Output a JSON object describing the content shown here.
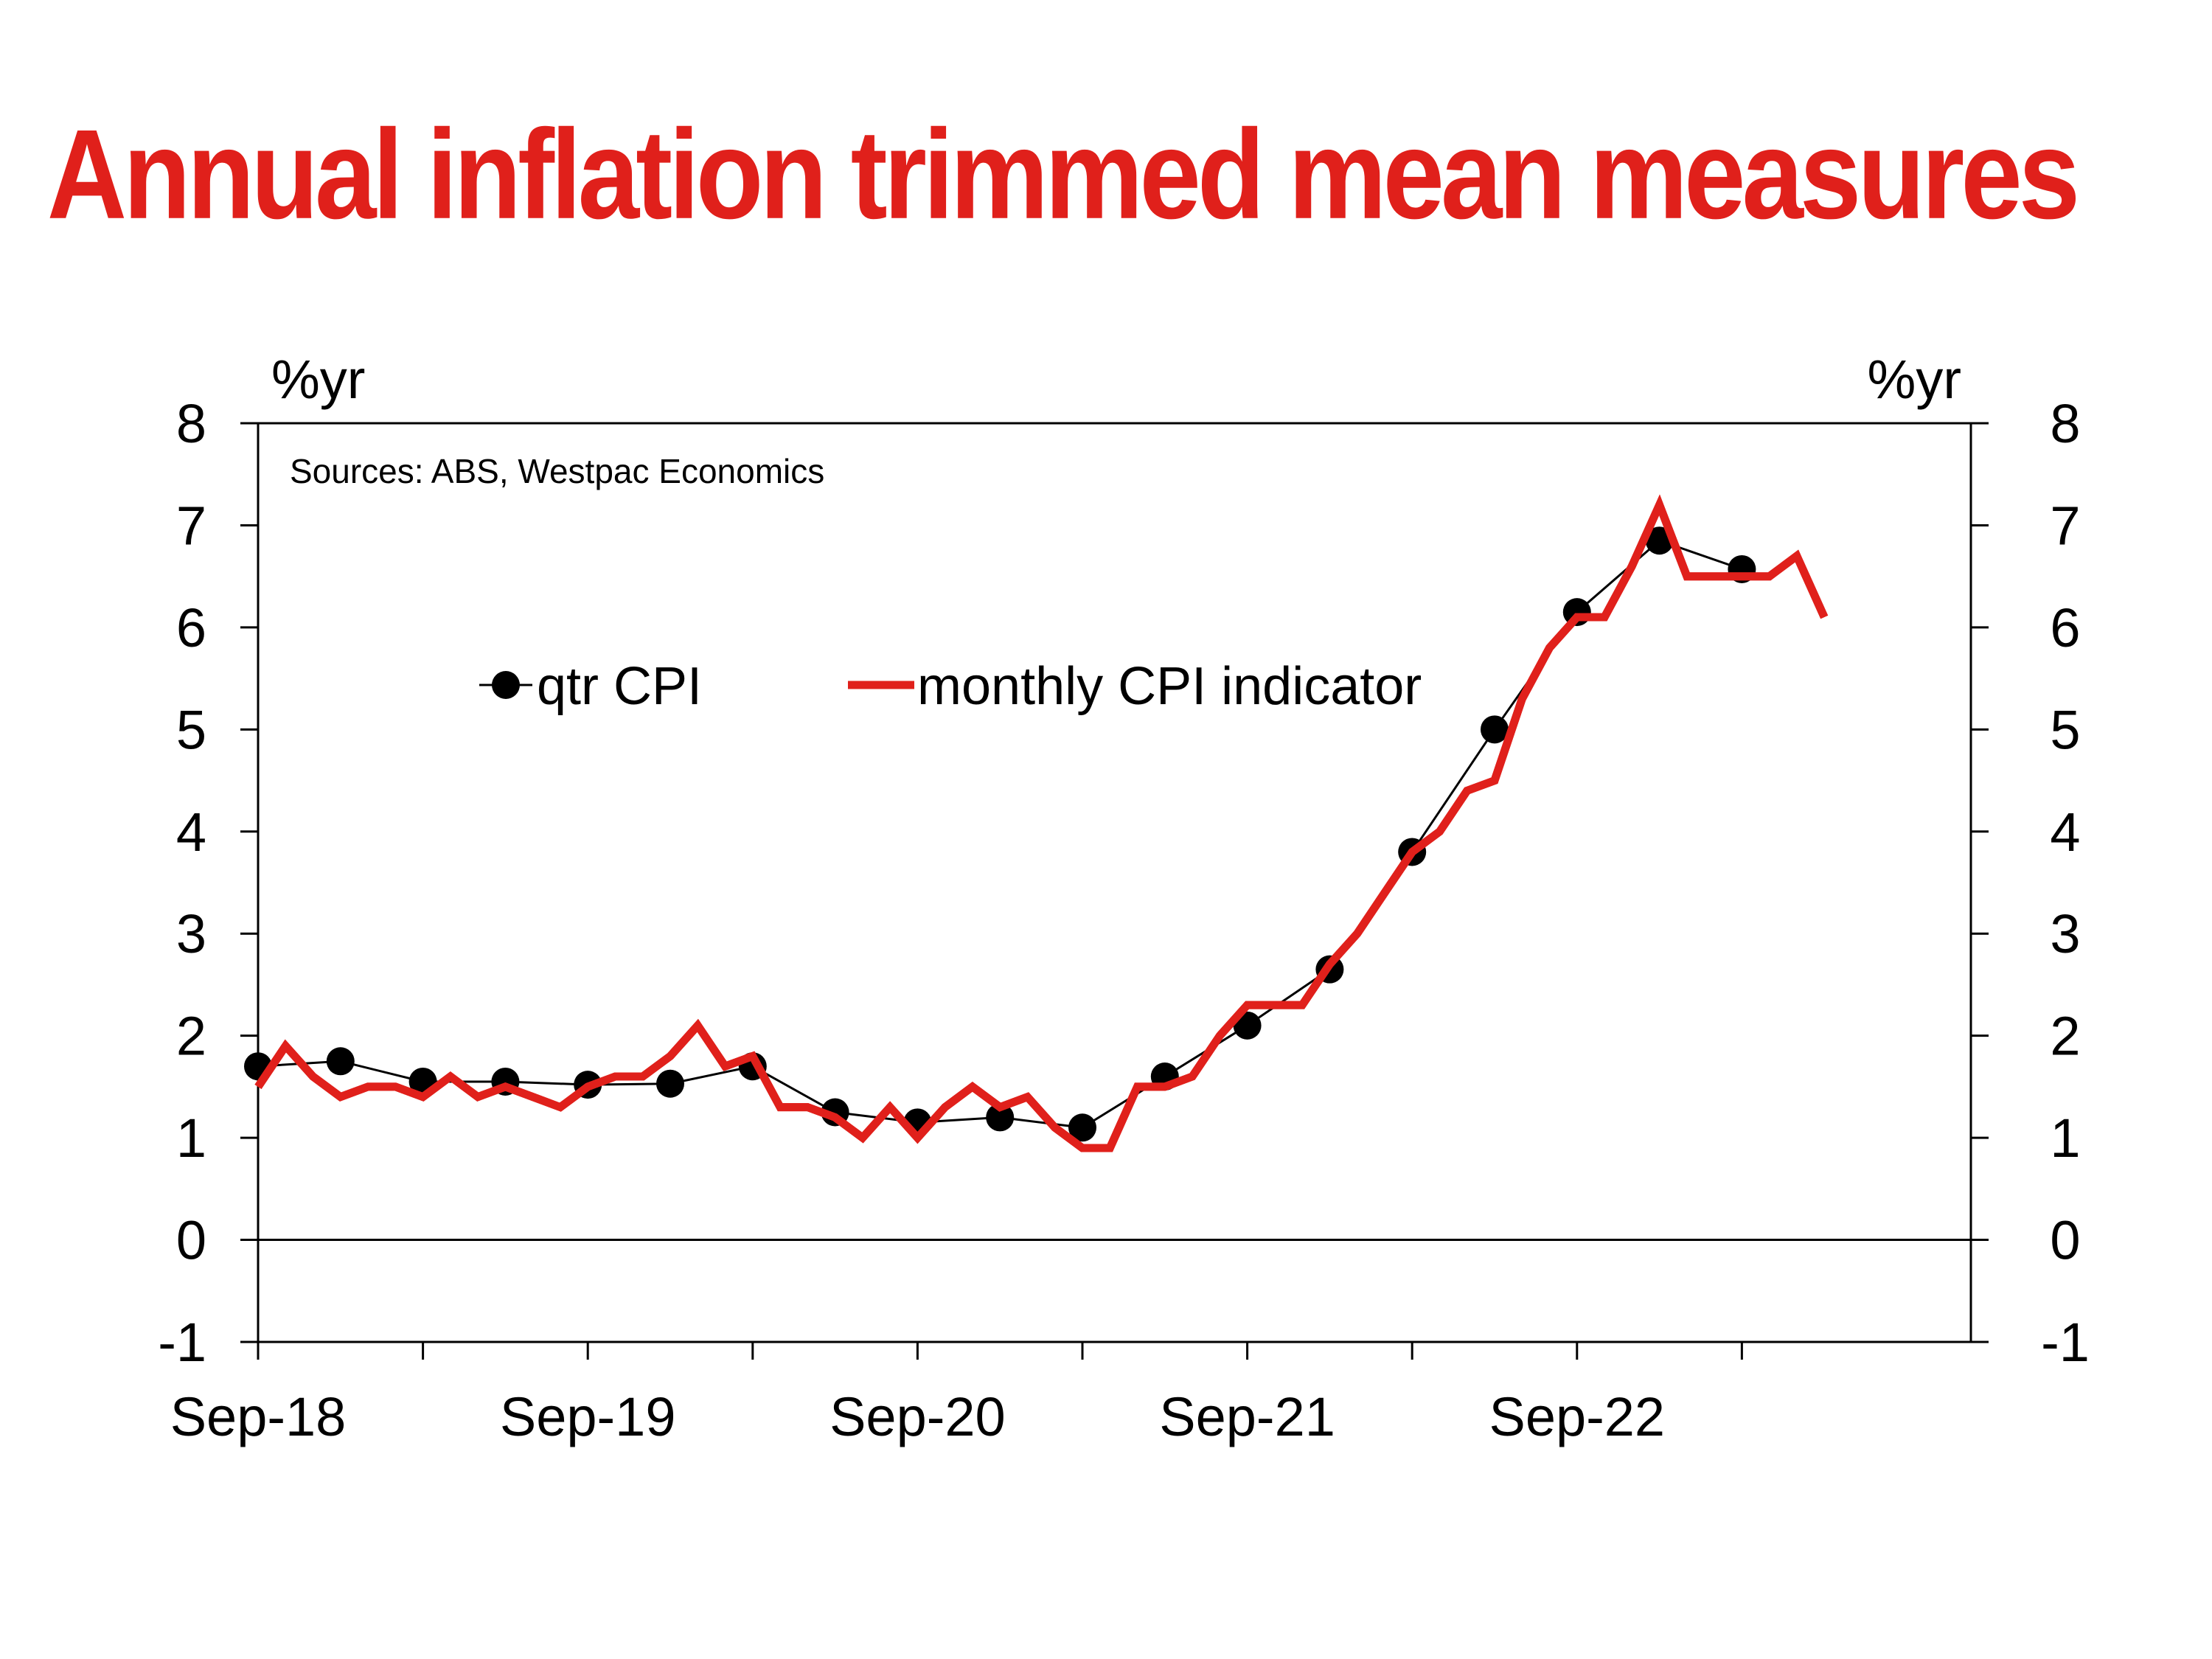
{
  "title": "Annual inflation trimmed mean measures",
  "chart_data": {
    "type": "line",
    "title": "Annual inflation trimmed mean measures",
    "source_note": "Sources: ABS, Westpac Economics",
    "y_unit_left": "%yr",
    "y_unit_right": "%yr",
    "ylim": [
      -1,
      8
    ],
    "yticks": [
      -1,
      0,
      1,
      2,
      3,
      4,
      5,
      6,
      7,
      8
    ],
    "x_tick_labels": [
      "Sep-18",
      "Sep-19",
      "Sep-20",
      "Sep-21",
      "Sep-22"
    ],
    "x_label_positions": [
      "2018-09",
      "2019-09",
      "2020-09",
      "2021-09",
      "2022-09"
    ],
    "x_range": [
      "2018-09",
      "2023-08"
    ],
    "grid": false,
    "legend_position": "top-left inside plot",
    "colors": {
      "qtr": "#000000",
      "monthly": "#e0201b"
    },
    "series": [
      {
        "name": "qtr CPI",
        "style": "line-with-markers",
        "points": [
          [
            "2018-09",
            1.7
          ],
          [
            "2018-12",
            1.75
          ],
          [
            "2019-03",
            1.55
          ],
          [
            "2019-06",
            1.55
          ],
          [
            "2019-09",
            1.52
          ],
          [
            "2019-12",
            1.53
          ],
          [
            "2020-03",
            1.7
          ],
          [
            "2020-06",
            1.25
          ],
          [
            "2020-09",
            1.15
          ],
          [
            "2020-12",
            1.2
          ],
          [
            "2021-03",
            1.1
          ],
          [
            "2021-06",
            1.6
          ],
          [
            "2021-09",
            2.1
          ],
          [
            "2021-12",
            2.65
          ],
          [
            "2022-03",
            3.8
          ],
          [
            "2022-06",
            5.0
          ],
          [
            "2022-09",
            6.15
          ],
          [
            "2022-12",
            6.85
          ],
          [
            "2023-03",
            6.57
          ]
        ]
      },
      {
        "name": "monthly CPI indicator",
        "style": "line",
        "points": [
          [
            "2018-09",
            1.5
          ],
          [
            "2018-10",
            1.9
          ],
          [
            "2018-11",
            1.6
          ],
          [
            "2018-12",
            1.4
          ],
          [
            "2019-01",
            1.5
          ],
          [
            "2019-02",
            1.5
          ],
          [
            "2019-03",
            1.4
          ],
          [
            "2019-04",
            1.6
          ],
          [
            "2019-05",
            1.4
          ],
          [
            "2019-06",
            1.5
          ],
          [
            "2019-07",
            1.4
          ],
          [
            "2019-08",
            1.3
          ],
          [
            "2019-09",
            1.5
          ],
          [
            "2019-10",
            1.6
          ],
          [
            "2019-11",
            1.6
          ],
          [
            "2019-12",
            1.8
          ],
          [
            "2020-01",
            2.1
          ],
          [
            "2020-02",
            1.7
          ],
          [
            "2020-03",
            1.8
          ],
          [
            "2020-04",
            1.3
          ],
          [
            "2020-05",
            1.3
          ],
          [
            "2020-06",
            1.2
          ],
          [
            "2020-07",
            1.0
          ],
          [
            "2020-08",
            1.3
          ],
          [
            "2020-09",
            1.0
          ],
          [
            "2020-10",
            1.3
          ],
          [
            "2020-11",
            1.5
          ],
          [
            "2020-12",
            1.3
          ],
          [
            "2021-01",
            1.4
          ],
          [
            "2021-02",
            1.1
          ],
          [
            "2021-03",
            0.9
          ],
          [
            "2021-04",
            0.9
          ],
          [
            "2021-05",
            1.5
          ],
          [
            "2021-06",
            1.5
          ],
          [
            "2021-07",
            1.6
          ],
          [
            "2021-08",
            2.0
          ],
          [
            "2021-09",
            2.3
          ],
          [
            "2021-10",
            2.3
          ],
          [
            "2021-11",
            2.3
          ],
          [
            "2021-12",
            2.7
          ],
          [
            "2022-01",
            3.0
          ],
          [
            "2022-02",
            3.4
          ],
          [
            "2022-03",
            3.8
          ],
          [
            "2022-04",
            4.0
          ],
          [
            "2022-05",
            4.4
          ],
          [
            "2022-06",
            4.5
          ],
          [
            "2022-07",
            5.3
          ],
          [
            "2022-08",
            5.8
          ],
          [
            "2022-09",
            6.1
          ],
          [
            "2022-10",
            6.1
          ],
          [
            "2022-11",
            6.6
          ],
          [
            "2022-12",
            7.2
          ],
          [
            "2023-01",
            6.5
          ],
          [
            "2023-02",
            6.5
          ],
          [
            "2023-03",
            6.5
          ],
          [
            "2023-04",
            6.5
          ],
          [
            "2023-05",
            6.7
          ],
          [
            "2023-06",
            6.1
          ]
        ]
      }
    ]
  }
}
